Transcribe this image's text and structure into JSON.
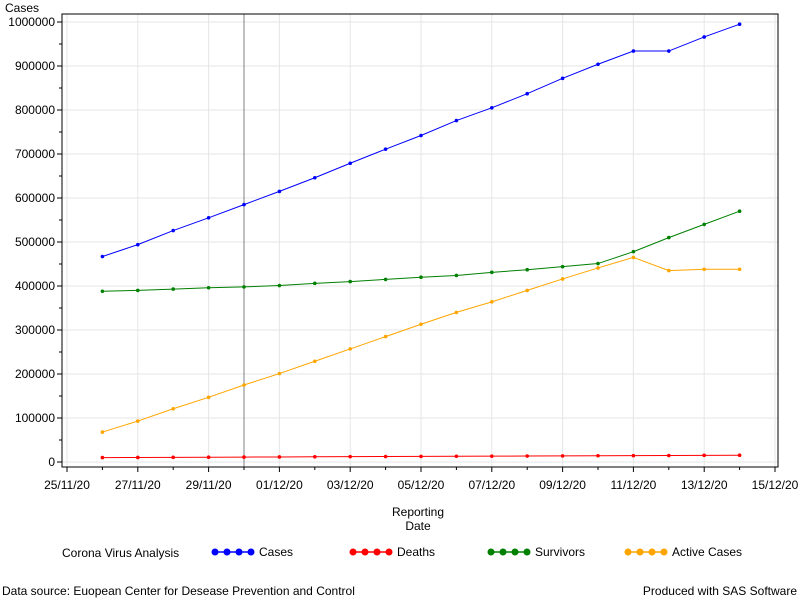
{
  "chart_data": {
    "type": "line",
    "ylabel": "Cases",
    "xlabel": [
      "Reporting",
      "Date"
    ],
    "ylim": [
      0,
      1000000
    ],
    "yticks": [
      0,
      100000,
      200000,
      300000,
      400000,
      500000,
      600000,
      700000,
      800000,
      900000,
      1000000
    ],
    "xticks": [
      "25/11/20",
      "27/11/20",
      "29/11/20",
      "01/12/20",
      "03/12/20",
      "05/12/20",
      "07/12/20",
      "09/12/20",
      "11/12/20",
      "13/12/20",
      "15/12/20"
    ],
    "reference_line_x": "30/11/20",
    "grid": true,
    "legend_placement": "bottom",
    "x": [
      "26/11/20",
      "27/11/20",
      "28/11/20",
      "29/11/20",
      "30/11/20",
      "01/12/20",
      "02/12/20",
      "03/12/20",
      "04/12/20",
      "05/12/20",
      "06/12/20",
      "07/12/20",
      "08/12/20",
      "09/12/20",
      "10/12/20",
      "11/12/20",
      "12/12/20",
      "13/12/20",
      "14/12/20"
    ],
    "series": [
      {
        "name": "Cases",
        "color": "#0000ff",
        "values": [
          467000,
          494000,
          526000,
          555000,
          585000,
          615000,
          646000,
          679000,
          711000,
          742000,
          776000,
          805000,
          837000,
          872000,
          904000,
          934000,
          934000,
          966000,
          995000
        ]
      },
      {
        "name": "Deaths",
        "color": "#ff0000",
        "values": [
          10000,
          10300,
          10600,
          10900,
          11200,
          11500,
          11800,
          12100,
          12400,
          12700,
          13000,
          13300,
          13600,
          13900,
          14200,
          14500,
          14800,
          15100,
          15400
        ]
      },
      {
        "name": "Survivors",
        "color": "#008000",
        "values": [
          388000,
          390000,
          393000,
          396000,
          398000,
          401000,
          406000,
          410000,
          415000,
          420000,
          424000,
          431000,
          437000,
          444000,
          451000,
          478000,
          510000,
          540000,
          570000
        ]
      },
      {
        "name": "Active Cases",
        "color": "#ffa500",
        "values": [
          68000,
          93000,
          121000,
          147000,
          175000,
          201000,
          229000,
          257000,
          285000,
          313000,
          340000,
          364000,
          390000,
          416000,
          441000,
          465000,
          435000,
          438000,
          438000
        ]
      }
    ]
  },
  "legend": {
    "title": "Corona Virus Analysis"
  },
  "footnotes": {
    "left": "Data source: Euopean Center for Desease Prevention and Control",
    "right": "Produced with SAS Software"
  }
}
